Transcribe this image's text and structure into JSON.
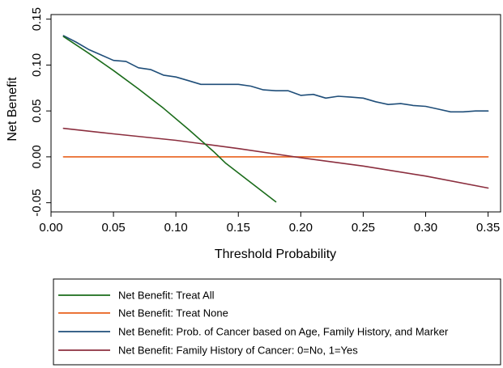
{
  "chart_data": {
    "type": "line",
    "title": "",
    "xlabel": "Threshold Probability",
    "ylabel": "Net Benefit",
    "xlim": [
      0,
      0.36
    ],
    "ylim": [
      -0.06,
      0.155
    ],
    "x_ticks": [
      0.0,
      0.05,
      0.1,
      0.15,
      0.2,
      0.25,
      0.3,
      0.35
    ],
    "x_tick_labels": [
      "0.00",
      "0.05",
      "0.10",
      "0.15",
      "0.20",
      "0.25",
      "0.30",
      "0.35"
    ],
    "y_ticks": [
      -0.05,
      0.0,
      0.05,
      0.1,
      0.15
    ],
    "y_tick_labels": [
      "-0.05",
      "0.00",
      "0.05",
      "0.10",
      "0.15"
    ],
    "grid": false,
    "legend_position": "bottom",
    "series": [
      {
        "name": "Net Benefit: Treat All",
        "color": "#1a6b1a",
        "x": [
          0.01,
          0.03,
          0.05,
          0.07,
          0.09,
          0.11,
          0.13,
          0.14,
          0.16,
          0.18
        ],
        "y": [
          0.131,
          0.113,
          0.094,
          0.074,
          0.053,
          0.03,
          0.006,
          -0.007,
          -0.028,
          -0.049
        ]
      },
      {
        "name": "Net Benefit: Treat None",
        "color": "#e8601c",
        "x": [
          0.01,
          0.35
        ],
        "y": [
          0.0,
          0.0
        ]
      },
      {
        "name": "Net Benefit: Prob. of Cancer based on Age, Family History, and Marker",
        "color": "#1f4e79",
        "x": [
          0.01,
          0.02,
          0.03,
          0.04,
          0.05,
          0.06,
          0.07,
          0.08,
          0.09,
          0.1,
          0.11,
          0.12,
          0.13,
          0.14,
          0.15,
          0.16,
          0.17,
          0.18,
          0.19,
          0.2,
          0.21,
          0.22,
          0.23,
          0.24,
          0.25,
          0.26,
          0.27,
          0.28,
          0.29,
          0.3,
          0.31,
          0.32,
          0.33,
          0.34,
          0.35
        ],
        "y": [
          0.132,
          0.125,
          0.117,
          0.111,
          0.105,
          0.104,
          0.097,
          0.095,
          0.089,
          0.087,
          0.083,
          0.079,
          0.079,
          0.079,
          0.079,
          0.077,
          0.073,
          0.072,
          0.072,
          0.067,
          0.068,
          0.064,
          0.066,
          0.065,
          0.064,
          0.06,
          0.057,
          0.058,
          0.056,
          0.055,
          0.052,
          0.049,
          0.049,
          0.05,
          0.05
        ]
      },
      {
        "name": "Net Benefit: Family History of Cancer: 0=No, 1=Yes",
        "color": "#8b2e3e",
        "x": [
          0.01,
          0.05,
          0.1,
          0.15,
          0.2,
          0.25,
          0.3,
          0.35
        ],
        "y": [
          0.031,
          0.025,
          0.018,
          0.009,
          -0.001,
          -0.01,
          -0.021,
          -0.034
        ]
      }
    ]
  }
}
